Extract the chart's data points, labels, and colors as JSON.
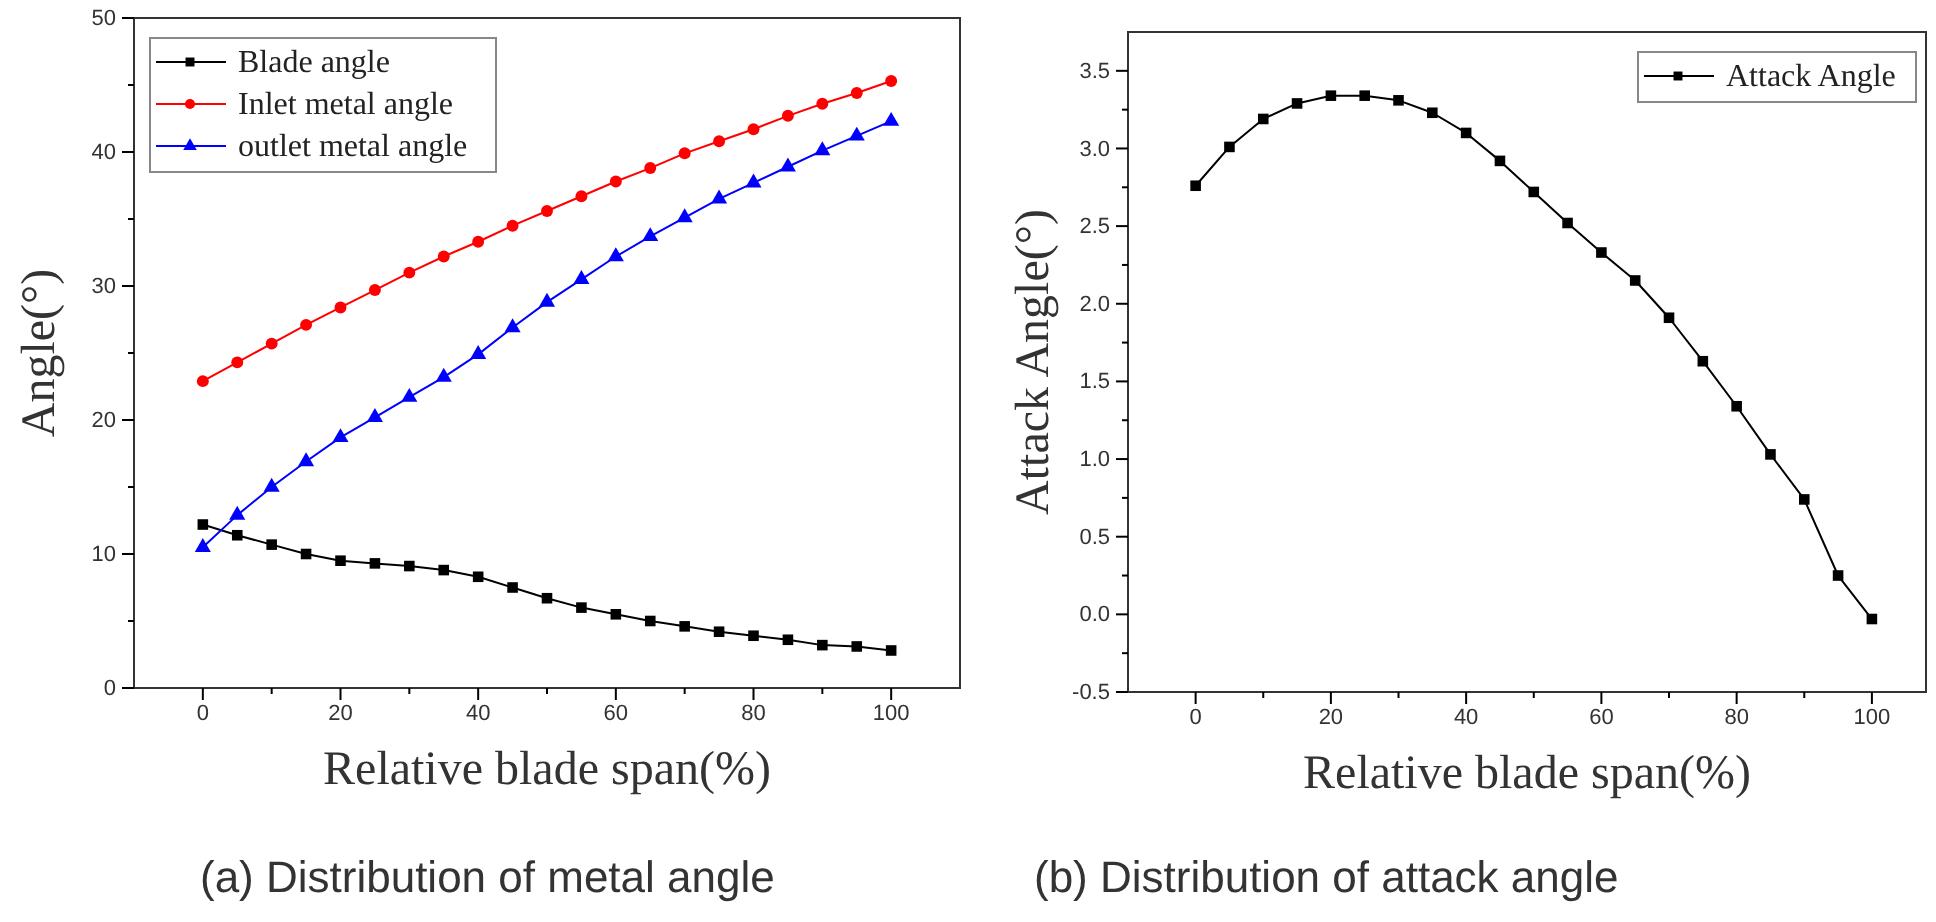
{
  "chart_data": [
    {
      "type": "line",
      "title": "(a) Distribution of metal angle",
      "xlabel": "Relative blade span(%)",
      "ylabel": "Angle(°)",
      "x": [
        0,
        5,
        10,
        15,
        20,
        25,
        30,
        35,
        40,
        45,
        50,
        55,
        60,
        65,
        70,
        75,
        80,
        85,
        90,
        95,
        100
      ],
      "series": [
        {
          "name": "Blade angle",
          "color": "#000000",
          "marker": "square",
          "values": [
            12.2,
            11.4,
            10.7,
            10.0,
            9.5,
            9.3,
            9.1,
            8.8,
            8.3,
            7.5,
            6.7,
            6.0,
            5.5,
            5.0,
            4.6,
            4.2,
            3.9,
            3.6,
            3.2,
            3.1,
            2.8
          ]
        },
        {
          "name": "Inlet metal angle",
          "color": "#ff0000",
          "marker": "circle",
          "values": [
            22.9,
            24.3,
            25.7,
            27.1,
            28.4,
            29.7,
            31.0,
            32.2,
            33.3,
            34.5,
            35.6,
            36.7,
            37.8,
            38.8,
            39.9,
            40.8,
            41.7,
            42.7,
            43.6,
            44.4,
            45.3
          ]
        },
        {
          "name": "outlet metal angle",
          "color": "#0000ff",
          "marker": "triangle",
          "values": [
            10.5,
            12.9,
            15.0,
            16.9,
            18.7,
            20.2,
            21.7,
            23.2,
            24.9,
            26.9,
            28.8,
            30.5,
            32.2,
            33.7,
            35.1,
            36.5,
            37.7,
            38.9,
            40.1,
            41.2,
            42.3
          ]
        }
      ],
      "xlim": [
        -10,
        110
      ],
      "xticks": [
        0,
        {
          "value": 10,
          "label": null
        },
        20,
        {
          "value": 30,
          "label": null
        },
        40,
        {
          "value": 50,
          "label": null
        },
        60,
        {
          "value": 70,
          "label": null
        },
        80,
        {
          "value": 90,
          "label": null
        },
        100
      ],
      "ylim": [
        0,
        50
      ],
      "yticks": [
        0,
        {
          "value": 5,
          "label": null
        },
        10,
        {
          "value": 15,
          "label": null
        },
        20,
        {
          "value": 25,
          "label": null
        },
        30,
        {
          "value": 35,
          "label": null
        },
        40,
        {
          "value": 45,
          "label": null
        },
        50
      ],
      "legend": "top left",
      "grid": false,
      "line_style": "solid"
    },
    {
      "type": "line",
      "title": "(b) Distribution of attack angle",
      "xlabel": "Relative blade span(%)",
      "ylabel": "Attack Angle(°)",
      "x": [
        0,
        5,
        10,
        15,
        20,
        25,
        30,
        35,
        40,
        45,
        50,
        55,
        60,
        65,
        70,
        75,
        80,
        85,
        90,
        95,
        100
      ],
      "series": [
        {
          "name": "Attack Angle",
          "color": "#000000",
          "marker": "square",
          "values": [
            2.76,
            3.01,
            3.19,
            3.29,
            3.34,
            3.34,
            3.31,
            3.23,
            3.1,
            2.92,
            2.72,
            2.52,
            2.33,
            2.15,
            1.91,
            1.63,
            1.34,
            1.03,
            0.74,
            0.25,
            -0.03
          ]
        }
      ],
      "xlim": [
        -10,
        108
      ],
      "xticks": [
        0,
        {
          "value": 10,
          "label": null
        },
        20,
        {
          "value": 30,
          "label": null
        },
        40,
        {
          "value": 50,
          "label": null
        },
        60,
        {
          "value": 70,
          "label": null
        },
        80,
        {
          "value": 90,
          "label": null
        },
        100
      ],
      "ylim": [
        -0.5,
        3.75
      ],
      "yticks": [
        {
          "value": -0.5,
          "label": "-0.5"
        },
        {
          "value": -0.25,
          "label": null
        },
        {
          "value": 0,
          "label": "0.0"
        },
        {
          "value": 0.25,
          "label": null
        },
        {
          "value": 0.5,
          "label": "0.5"
        },
        {
          "value": 0.75,
          "label": null
        },
        {
          "value": 1,
          "label": "1.0"
        },
        {
          "value": 1.25,
          "label": null
        },
        {
          "value": 1.5,
          "label": "1.5"
        },
        {
          "value": 1.75,
          "label": null
        },
        {
          "value": 2,
          "label": "2.0"
        },
        {
          "value": 2.25,
          "label": null
        },
        {
          "value": 2.5,
          "label": "2.5"
        },
        {
          "value": 2.75,
          "label": null
        },
        {
          "value": 3,
          "label": "3.0"
        },
        {
          "value": 3.25,
          "label": null
        },
        {
          "value": 3.5,
          "label": "3.5"
        }
      ],
      "legend": "top right",
      "grid": false,
      "line_style": "solid"
    }
  ]
}
